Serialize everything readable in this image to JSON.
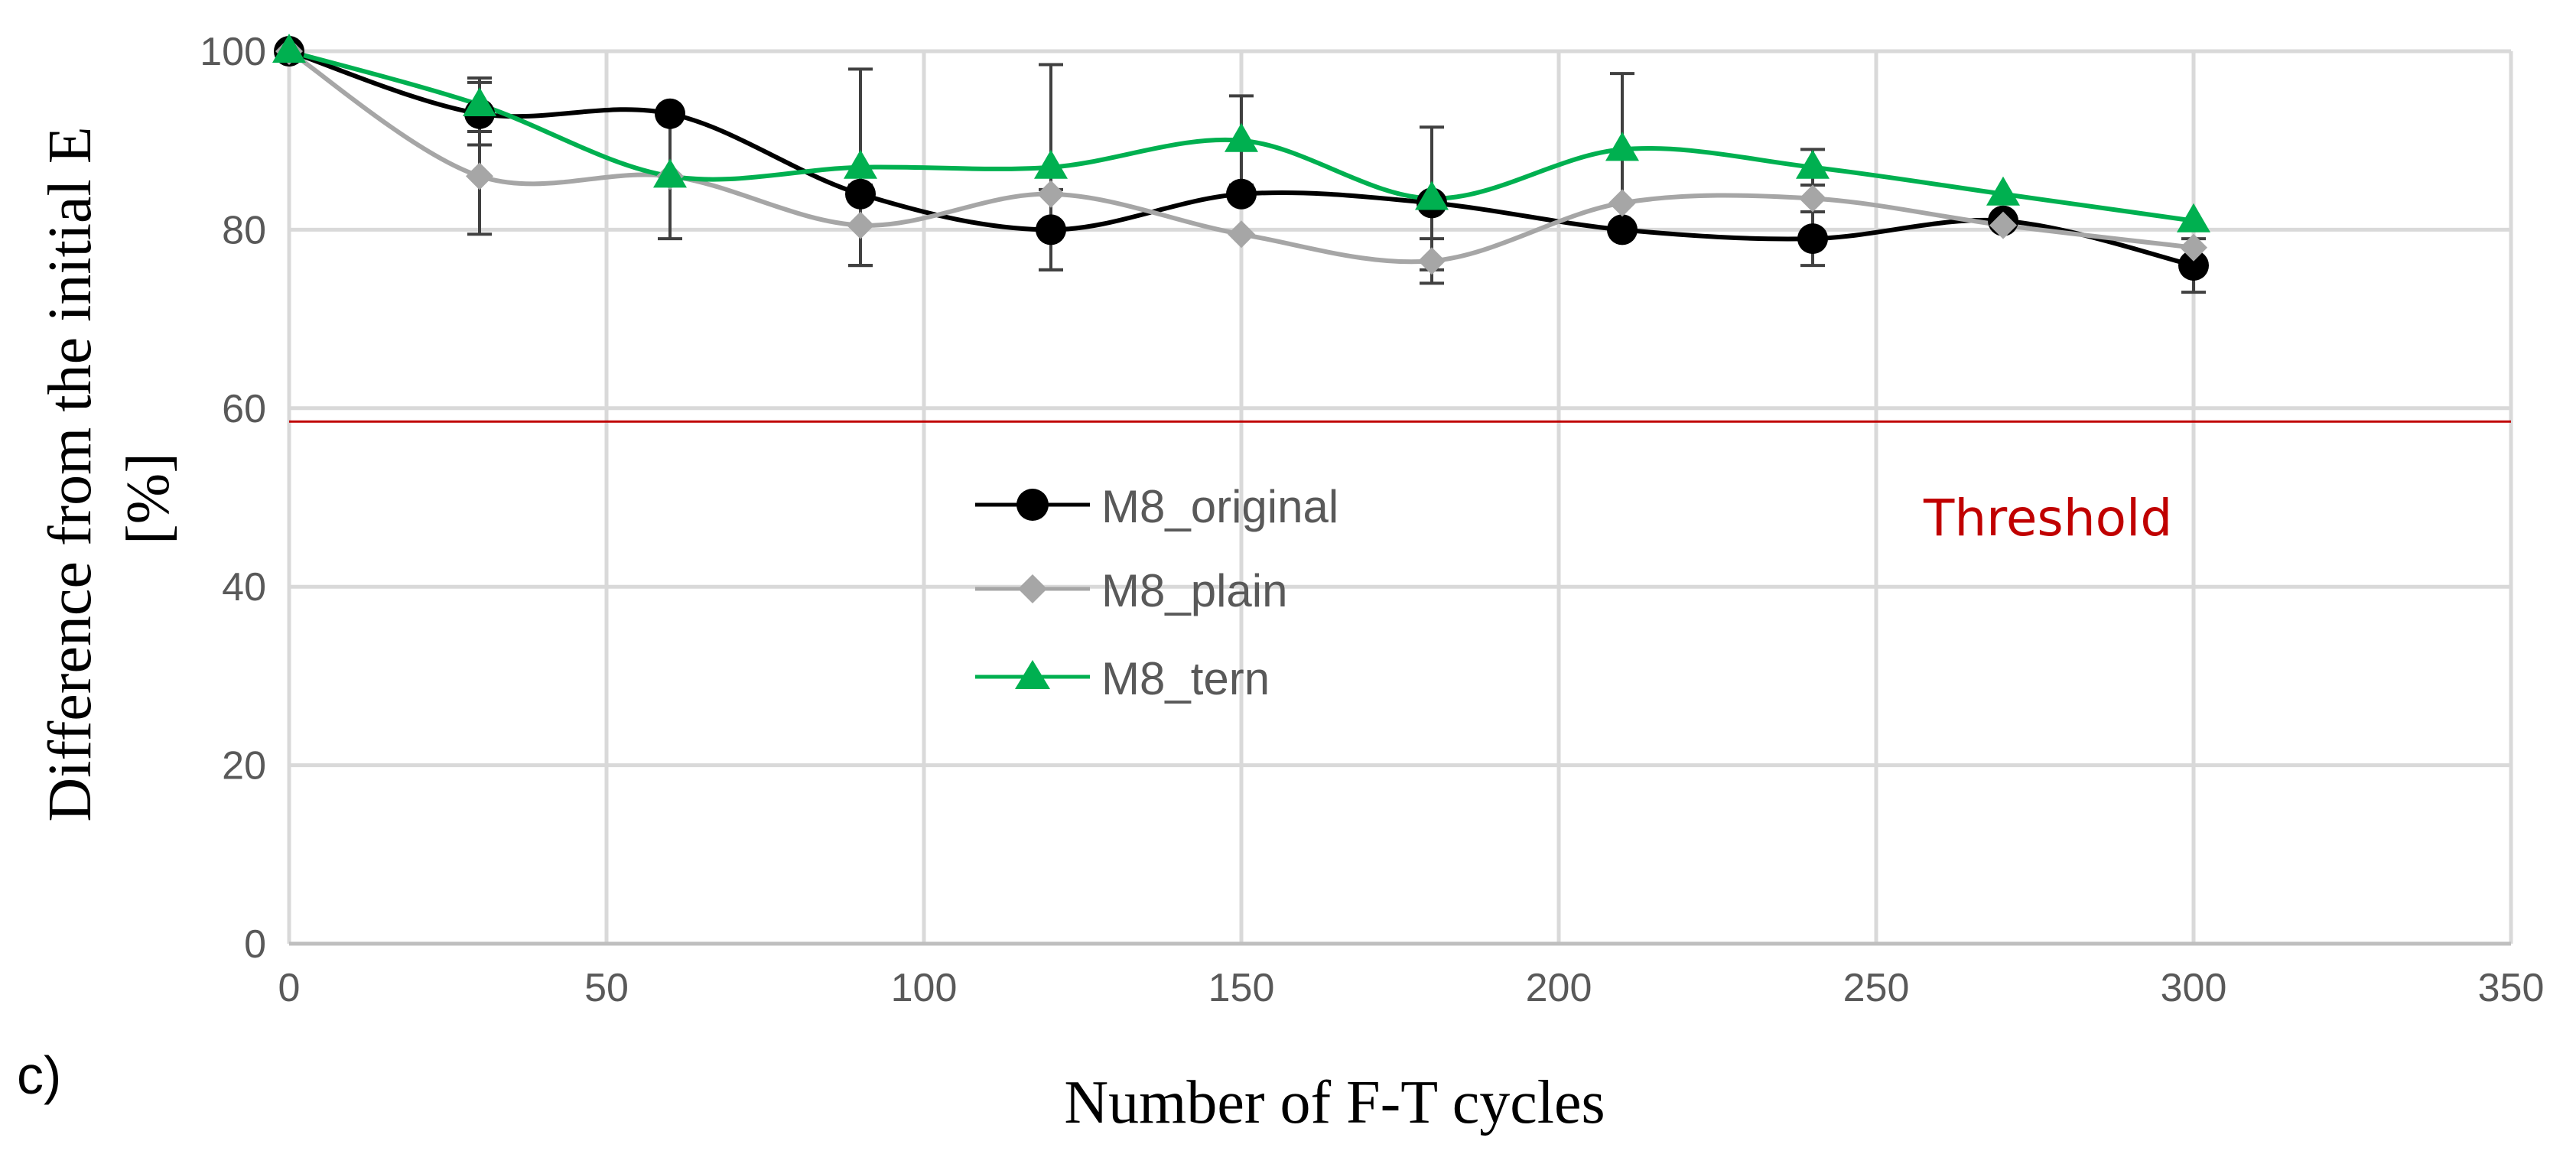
{
  "chart_data": {
    "type": "line",
    "title": "",
    "panel_label": "c)",
    "xlabel": "Number of F-T cycles",
    "ylabel_line1": "Difference from the initial E",
    "ylabel_line2": "[%]",
    "xlim": [
      0,
      350
    ],
    "ylim": [
      0,
      100
    ],
    "x_ticks": [
      0,
      50,
      100,
      150,
      200,
      250,
      300,
      350
    ],
    "y_ticks": [
      0,
      20,
      40,
      60,
      80,
      100
    ],
    "grid": true,
    "legend_position": "center",
    "threshold": {
      "label": "Threshold",
      "value": 58.5,
      "color": "#c00000"
    },
    "series": [
      {
        "name": "M8_original",
        "color": "#000000",
        "marker": "circle",
        "x": [
          0,
          30,
          60,
          90,
          120,
          150,
          180,
          210,
          240,
          270,
          300
        ],
        "y": [
          100,
          93,
          93,
          84,
          80,
          84,
          83,
          80,
          79,
          81,
          76
        ],
        "error": [
          null,
          3.5,
          null,
          null,
          4.5,
          null,
          null,
          null,
          3,
          null,
          3
        ]
      },
      {
        "name": "M8_plain",
        "color": "#a6a6a6",
        "marker": "diamond",
        "x": [
          0,
          30,
          60,
          90,
          120,
          150,
          180,
          210,
          240,
          270,
          300
        ],
        "y": [
          100,
          86,
          86,
          80.5,
          84,
          79.5,
          76.5,
          83,
          83.5,
          80.5,
          78
        ],
        "error": [
          null,
          6.5,
          null,
          4.5,
          null,
          null,
          2.5,
          null,
          null,
          null,
          null
        ]
      },
      {
        "name": "M8_tern",
        "color": "#00b050",
        "marker": "triangle",
        "x": [
          0,
          30,
          60,
          90,
          120,
          150,
          180,
          210,
          240,
          270,
          300
        ],
        "y": [
          100,
          94,
          86,
          87,
          87,
          90,
          83.5,
          89,
          87,
          84,
          81
        ],
        "error": [
          null,
          3,
          7,
          11,
          11.5,
          5,
          8,
          8.5,
          2,
          null,
          null
        ]
      }
    ]
  }
}
